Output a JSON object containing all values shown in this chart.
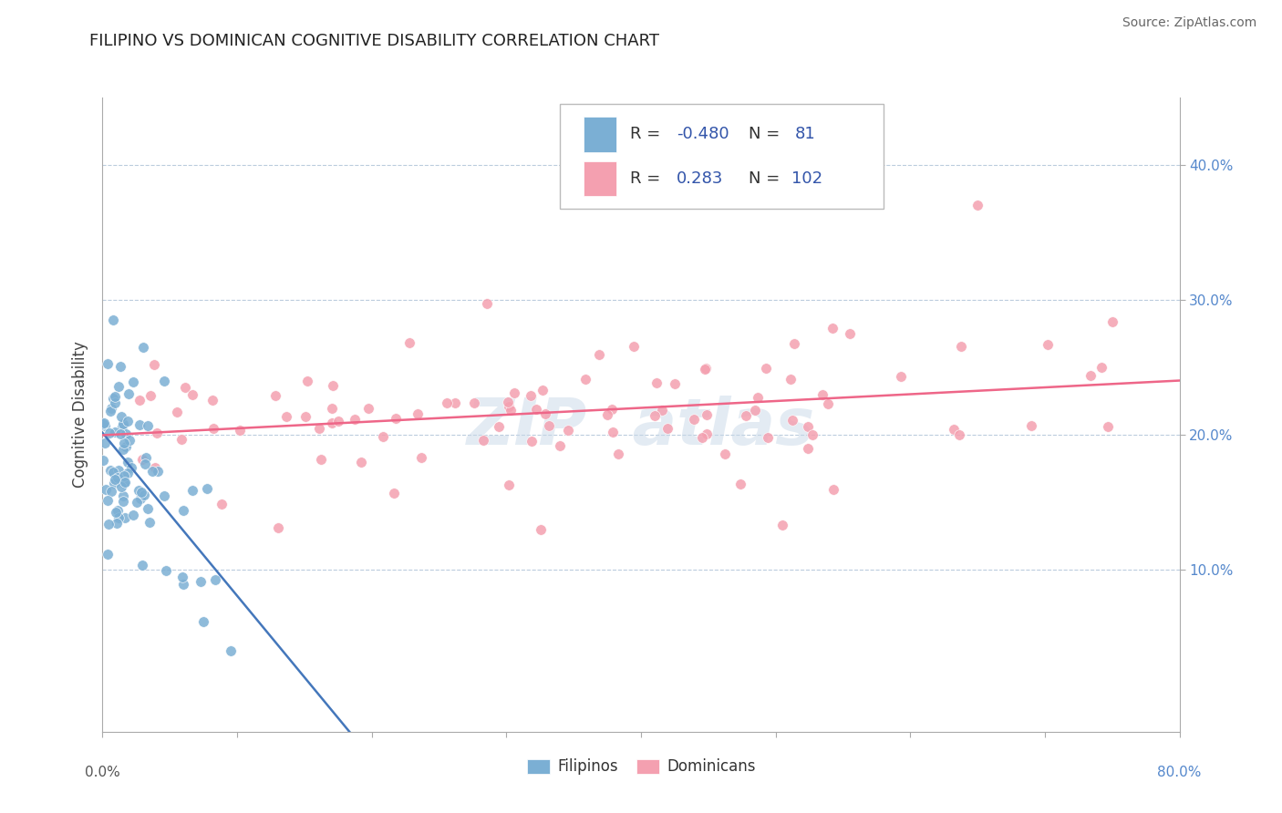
{
  "title": "FILIPINO VS DOMINICAN COGNITIVE DISABILITY CORRELATION CHART",
  "source": "Source: ZipAtlas.com",
  "ylabel": "Cognitive Disability",
  "blue_color": "#7BAFD4",
  "pink_color": "#F4A0B0",
  "blue_line_color": "#4477BB",
  "pink_line_color": "#EE6688",
  "watermark_color": "#C8D8E8",
  "xlim": [
    0.0,
    0.8
  ],
  "ylim": [
    -0.02,
    0.45
  ],
  "y_ticks": [
    0.1,
    0.2,
    0.3,
    0.4
  ],
  "y_tick_labels": [
    "10.0%",
    "20.0%",
    "30.0%",
    "40.0%"
  ],
  "legend_r1": "R = -0.480",
  "legend_n1": "N =  81",
  "legend_r2": "R =  0.283",
  "legend_n2": "N = 102",
  "legend_color": "#3355AA",
  "title_fontsize": 13,
  "tick_fontsize": 11,
  "source_fontsize": 10
}
